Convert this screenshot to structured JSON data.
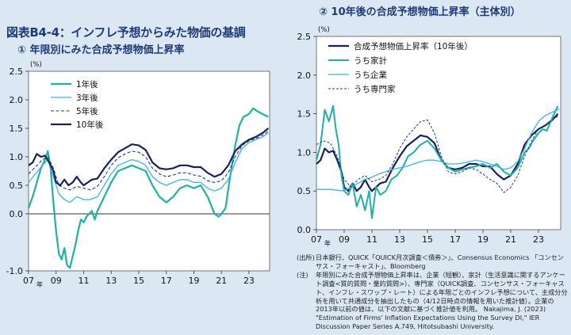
{
  "header": {
    "main_title": "図表B4-4：インフレ予想からみた物価の基調",
    "left_subtitle": "① 年限別にみた合成予想物価上昇率",
    "right_subtitle": "② 10年後の合成予想物価上昇率（主体別）"
  },
  "chart_data": [
    {
      "type": "line",
      "title": "① 年限別にみた合成予想物価上昇率",
      "ylabel": "(%)",
      "xlabel": "年",
      "ylim": [
        -1.0,
        2.5
      ],
      "yticks": [
        "2.5",
        "2.0",
        "1.5",
        "1.0",
        "0.5",
        "0.0",
        "-1.0"
      ],
      "xlim": [
        2007,
        2024.5
      ],
      "xticks": [
        "07",
        "09",
        "11",
        "13",
        "15",
        "17",
        "19",
        "21",
        "23"
      ],
      "legend_position": "top-left",
      "series": [
        {
          "name": "1年後",
          "color": "#1fb0a6",
          "width": 2.2,
          "dash": "",
          "x": [
            2007,
            2007.3,
            2007.6,
            2007.9,
            2008.2,
            2008.4,
            2008.6,
            2008.8,
            2009.0,
            2009.2,
            2009.4,
            2009.6,
            2009.8,
            2010.0,
            2010.2,
            2010.4,
            2010.6,
            2010.8,
            2011.0,
            2011.2,
            2011.4,
            2011.6,
            2011.8,
            2012.0,
            2012.5,
            2013.0,
            2013.5,
            2014.0,
            2014.5,
            2015.0,
            2015.5,
            2016.0,
            2016.5,
            2017.0,
            2017.5,
            2018.0,
            2018.5,
            2019.0,
            2019.5,
            2020.0,
            2020.5,
            2020.8,
            2021.0,
            2021.3,
            2021.6,
            2022.0,
            2022.3,
            2022.6,
            2023.0,
            2023.3,
            2023.6,
            2024.0,
            2024.4
          ],
          "y": [
            0.1,
            0.3,
            0.55,
            0.8,
            0.95,
            1.1,
            0.8,
            0.2,
            -0.3,
            -0.7,
            -0.8,
            -0.6,
            -0.9,
            -0.95,
            -0.75,
            -0.55,
            -0.3,
            -0.1,
            -0.15,
            -0.05,
            0.0,
            0.05,
            -0.1,
            0.05,
            0.3,
            0.55,
            0.75,
            0.8,
            0.85,
            0.8,
            0.75,
            0.5,
            0.3,
            0.2,
            0.3,
            0.45,
            0.5,
            0.45,
            0.5,
            0.3,
            0.0,
            -0.05,
            0.0,
            0.1,
            0.6,
            1.2,
            1.55,
            1.7,
            1.75,
            1.85,
            1.8,
            1.75,
            1.7
          ]
        },
        {
          "name": "3年後",
          "color": "#3fb0e8",
          "width": 1.3,
          "dash": "",
          "x": [
            2007,
            2007.5,
            2008.0,
            2008.4,
            2008.8,
            2009.2,
            2009.6,
            2010.0,
            2010.5,
            2011.0,
            2011.5,
            2012.0,
            2012.5,
            2013.0,
            2013.5,
            2014.0,
            2014.5,
            2015.0,
            2015.5,
            2016.0,
            2016.5,
            2017.0,
            2017.5,
            2018.0,
            2018.5,
            2019.0,
            2019.5,
            2020.0,
            2020.5,
            2021.0,
            2021.5,
            2022.0,
            2022.5,
            2023.0,
            2023.5,
            2024.0,
            2024.4
          ],
          "y": [
            0.55,
            0.7,
            0.85,
            0.95,
            0.65,
            0.35,
            0.25,
            0.2,
            0.3,
            0.25,
            0.25,
            0.3,
            0.5,
            0.7,
            0.85,
            0.9,
            0.95,
            0.92,
            0.85,
            0.65,
            0.55,
            0.5,
            0.55,
            0.6,
            0.6,
            0.55,
            0.55,
            0.45,
            0.4,
            0.45,
            0.6,
            0.9,
            1.15,
            1.25,
            1.3,
            1.35,
            1.42
          ]
        },
        {
          "name": "5年後",
          "color": "#1f3a78",
          "width": 1.1,
          "dash": "4 2.5",
          "x": [
            2007,
            2007.5,
            2008.0,
            2008.4,
            2008.8,
            2009.2,
            2009.6,
            2010.0,
            2010.5,
            2011.0,
            2011.5,
            2012.0,
            2012.5,
            2013.0,
            2013.5,
            2014.0,
            2014.5,
            2015.0,
            2015.5,
            2016.0,
            2016.5,
            2017.0,
            2017.5,
            2018.0,
            2018.5,
            2019.0,
            2019.5,
            2020.0,
            2020.5,
            2021.0,
            2021.5,
            2022.0,
            2022.5,
            2023.0,
            2023.5,
            2024.0,
            2024.4
          ],
          "y": [
            0.7,
            0.82,
            0.95,
            1.0,
            0.8,
            0.5,
            0.45,
            0.42,
            0.48,
            0.45,
            0.42,
            0.48,
            0.65,
            0.85,
            0.98,
            1.05,
            1.1,
            1.08,
            1.0,
            0.8,
            0.7,
            0.65,
            0.68,
            0.72,
            0.72,
            0.68,
            0.66,
            0.58,
            0.55,
            0.58,
            0.72,
            1.0,
            1.2,
            1.28,
            1.32,
            1.38,
            1.45
          ]
        },
        {
          "name": "10年後",
          "color": "#15235a",
          "width": 2.2,
          "dash": "",
          "x": [
            2007,
            2007.3,
            2007.6,
            2007.9,
            2008.2,
            2008.5,
            2008.8,
            2009.0,
            2009.3,
            2009.6,
            2009.9,
            2010.2,
            2010.5,
            2010.8,
            2011.0,
            2011.3,
            2011.6,
            2012.0,
            2012.5,
            2013.0,
            2013.5,
            2014.0,
            2014.5,
            2015.0,
            2015.5,
            2016.0,
            2016.5,
            2017.0,
            2017.5,
            2018.0,
            2018.5,
            2019.0,
            2019.5,
            2020.0,
            2020.5,
            2021.0,
            2021.5,
            2022.0,
            2022.5,
            2023.0,
            2023.5,
            2024.0,
            2024.4
          ],
          "y": [
            0.85,
            0.9,
            1.05,
            1.0,
            1.02,
            0.9,
            0.75,
            0.55,
            0.5,
            0.6,
            0.5,
            0.55,
            0.65,
            0.55,
            0.5,
            0.55,
            0.6,
            0.62,
            0.8,
            0.95,
            1.08,
            1.15,
            1.22,
            1.2,
            1.12,
            0.9,
            0.8,
            0.78,
            0.8,
            0.85,
            0.85,
            0.82,
            0.82,
            0.72,
            0.65,
            0.7,
            0.85,
            1.1,
            1.22,
            1.3,
            1.35,
            1.42,
            1.5
          ]
        }
      ]
    },
    {
      "type": "line",
      "title": "② 10年後の合成予想物価上昇率（主体別）",
      "ylabel": "(%)",
      "xlabel": "年",
      "ylim": [
        0.0,
        2.5
      ],
      "yticks": [
        "2.5",
        "2.0",
        "1.5",
        "1.0",
        "0.5",
        "0.0"
      ],
      "xlim": [
        2007,
        2024.6
      ],
      "xticks": [
        "07",
        "09",
        "11",
        "13",
        "15",
        "17",
        "19",
        "21",
        "23"
      ],
      "legend_position": "top-left",
      "series": [
        {
          "name": "合成予想物価上昇率（10年後）",
          "color": "#15235a",
          "width": 2.2,
          "dash": "",
          "x": [
            2007,
            2007.3,
            2007.6,
            2007.9,
            2008.2,
            2008.5,
            2008.8,
            2009.0,
            2009.3,
            2009.6,
            2009.9,
            2010.2,
            2010.5,
            2010.8,
            2011.0,
            2011.3,
            2011.6,
            2012.0,
            2012.5,
            2013.0,
            2013.5,
            2014.0,
            2014.5,
            2015.0,
            2015.5,
            2016.0,
            2016.5,
            2017.0,
            2017.5,
            2018.0,
            2018.5,
            2019.0,
            2019.5,
            2020.0,
            2020.5,
            2021.0,
            2021.5,
            2022.0,
            2022.5,
            2023.0,
            2023.5,
            2024.0,
            2024.4
          ],
          "y": [
            0.85,
            0.9,
            1.05,
            1.0,
            1.02,
            0.9,
            0.75,
            0.55,
            0.5,
            0.6,
            0.5,
            0.55,
            0.65,
            0.55,
            0.5,
            0.55,
            0.6,
            0.62,
            0.8,
            0.95,
            1.08,
            1.15,
            1.22,
            1.2,
            1.12,
            0.9,
            0.8,
            0.78,
            0.8,
            0.85,
            0.85,
            0.82,
            0.82,
            0.72,
            0.65,
            0.7,
            0.85,
            1.1,
            1.22,
            1.3,
            1.35,
            1.42,
            1.5
          ]
        },
        {
          "name": "うち家計",
          "color": "#1fb0a6",
          "width": 2.0,
          "dash": "",
          "x": [
            2007,
            2007.3,
            2007.6,
            2007.9,
            2008.2,
            2008.4,
            2008.6,
            2008.8,
            2009.0,
            2009.3,
            2009.6,
            2009.9,
            2010.2,
            2010.5,
            2010.8,
            2011.0,
            2011.3,
            2011.6,
            2012.0,
            2012.4,
            2012.8,
            2013.2,
            2013.6,
            2014.0,
            2014.5,
            2015.0,
            2015.5,
            2016.0,
            2016.5,
            2017.0,
            2017.5,
            2018.0,
            2018.5,
            2019.0,
            2019.5,
            2020.0,
            2020.5,
            2021.0,
            2021.5,
            2022.0,
            2022.3,
            2022.6,
            2023.0,
            2023.3,
            2023.6,
            2024.0,
            2024.4
          ],
          "y": [
            0.9,
            1.1,
            1.55,
            1.4,
            1.6,
            1.3,
            1.1,
            0.7,
            0.5,
            0.45,
            0.6,
            0.3,
            0.45,
            0.25,
            0.5,
            0.15,
            0.55,
            0.45,
            0.5,
            0.65,
            0.7,
            0.8,
            0.95,
            1.0,
            1.1,
            1.15,
            1.05,
            0.9,
            0.8,
            0.75,
            0.78,
            0.8,
            0.82,
            0.85,
            0.8,
            0.85,
            0.75,
            0.7,
            0.8,
            1.0,
            1.05,
            1.15,
            1.25,
            1.3,
            1.28,
            1.45,
            1.6
          ]
        },
        {
          "name": "うち企業",
          "color": "#3fb0e8",
          "width": 1.3,
          "dash": "",
          "x": [
            2007,
            2008,
            2009.0,
            2009.5,
            2010,
            2010.5,
            2011,
            2011.5,
            2012,
            2012.5,
            2013,
            2013.5,
            2014,
            2014.5,
            2015,
            2015.5,
            2016,
            2016.5,
            2017,
            2017.5,
            2018,
            2018.5,
            2019,
            2019.5,
            2020,
            2020.5,
            2021,
            2021.5,
            2022,
            2022.5,
            2023,
            2023.5,
            2024,
            2024.5
          ],
          "y": [
            0.52,
            0.52,
            0.5,
            0.55,
            0.6,
            0.65,
            0.68,
            0.72,
            0.75,
            0.78,
            0.8,
            0.82,
            0.85,
            0.88,
            0.9,
            0.9,
            0.88,
            0.85,
            0.85,
            0.86,
            0.88,
            0.9,
            0.88,
            0.85,
            0.82,
            0.78,
            0.8,
            0.88,
            1.05,
            1.25,
            1.4,
            1.48,
            1.52,
            1.56
          ]
        },
        {
          "name": "うち専門家",
          "color": "#1f3a78",
          "width": 1.0,
          "dash": "3 2",
          "x": [
            2007,
            2007.5,
            2008,
            2008.5,
            2009,
            2009.5,
            2010,
            2010.5,
            2011,
            2011.5,
            2012,
            2012.5,
            2013,
            2013.5,
            2014,
            2014.5,
            2015,
            2015.5,
            2016,
            2016.5,
            2017,
            2017.5,
            2018,
            2018.5,
            2019,
            2019.5,
            2020,
            2020.5,
            2021,
            2021.5,
            2022,
            2022.5,
            2023,
            2023.5,
            2024,
            2024.5
          ],
          "y": [
            1.1,
            1.15,
            1.12,
            0.95,
            0.65,
            0.55,
            0.65,
            0.7,
            0.62,
            0.65,
            0.7,
            0.85,
            1.05,
            1.2,
            1.3,
            1.4,
            1.42,
            1.25,
            0.95,
            0.75,
            0.72,
            0.75,
            0.8,
            0.78,
            0.72,
            0.65,
            0.6,
            0.48,
            0.55,
            0.7,
            0.95,
            1.15,
            1.3,
            1.35,
            1.42,
            1.48
          ]
        }
      ]
    }
  ],
  "notes": [
    {
      "label": "(出所)",
      "text": "日本銀行、QUICK「QUICK月次調査＜債券＞」、Consensus Economics 「コンセンサス・フォーキャスト」、Bloomberg"
    },
    {
      "label": "(注)",
      "text": "年限別にみた合成予想物価上昇率は、企業（短観）、家計（生活意識に関するアンケート調査<質的質問・量的質問>）、専門家（QUICK調査、コンセンサス・フォーキャスト、インフレ・スワップ・レート）による年限ごとのインフレ予想について、主成分分析を用いて共通成分を抽出したもの（4/12日時点の情報を用いた推計値）。企業の2013年以前の値は、以下の文献に基づく推計値を利用。 Nakajima, J. (2023) \"Estimation of Firms' Inflation Expectations Using the Survey DI,\" IER Discussion Paper Series A.749, Hitotsubashi University."
    }
  ]
}
